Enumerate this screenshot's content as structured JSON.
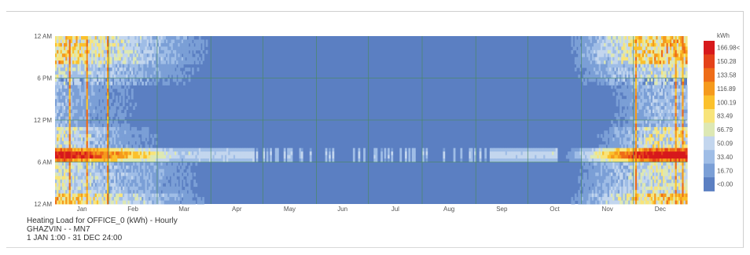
{
  "chart_data": {
    "type": "heatmap",
    "title": "Heating Load for OFFICE_0 (kWh) - Hourly",
    "subtitle_location": "GHAZVIN - - MN7",
    "subtitle_period": "1 JAN 1:00 - 31 DEC 24:00",
    "xlabel": "",
    "ylabel": "",
    "x_categories": [
      "Jan",
      "Feb",
      "Mar",
      "Apr",
      "May",
      "Jun",
      "Jul",
      "Aug",
      "Sep",
      "Oct",
      "Nov",
      "Dec"
    ],
    "y_ticks": [
      "12 AM",
      "6 PM",
      "12 PM",
      "6 AM",
      "12 AM"
    ],
    "grid": true,
    "legend_placement": "right",
    "legend": {
      "unit": "kWh",
      "labels": [
        "166.98<",
        "150.28",
        "133.58",
        "116.89",
        "100.19",
        "83.49",
        "66.79",
        "50.09",
        "33.40",
        "16.70",
        "<0.00"
      ],
      "colors": [
        "#d7191c",
        "#e4421a",
        "#ee6c18",
        "#f59a1c",
        "#fbc12c",
        "#f8e47a",
        "#dde8b4",
        "#c3d6ee",
        "#9fbde6",
        "#7b9fd6",
        "#5b7fc2"
      ]
    },
    "background_color": "#5b7fc2",
    "gridline_color": "#4a8a5a"
  }
}
